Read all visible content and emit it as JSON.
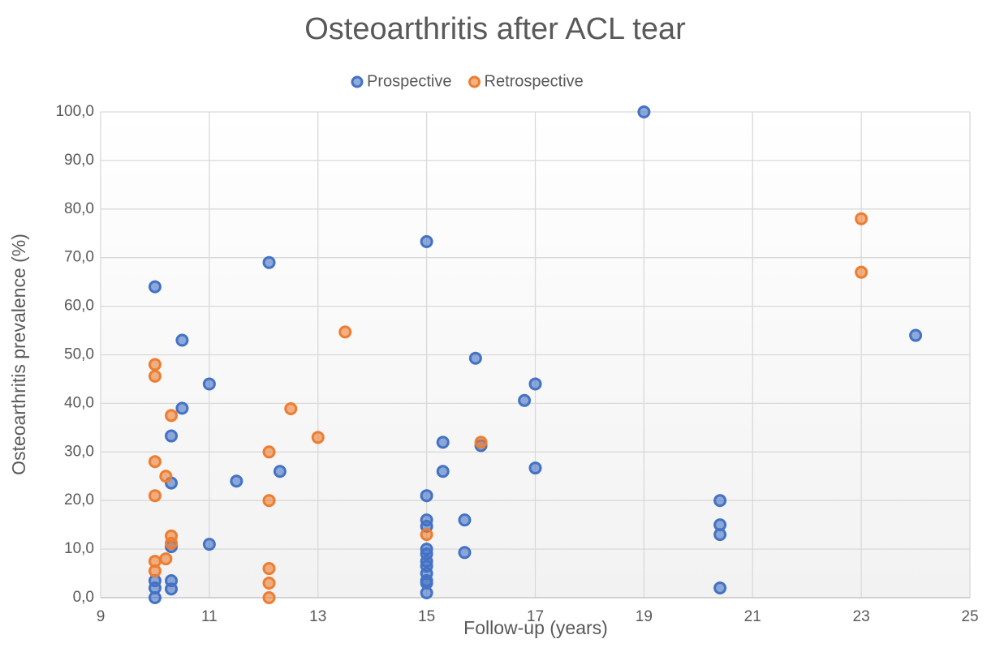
{
  "chart_data": {
    "type": "scatter",
    "title": "Osteoarthritis after ACL tear",
    "x_label": "Follow-up (years)",
    "y_label": "Osteoarthritis prevalence (%)",
    "legend": "top",
    "grid": true,
    "xlim": [
      9,
      25
    ],
    "xticks": [
      9,
      11,
      13,
      15,
      17,
      19,
      21,
      23,
      25
    ],
    "ylim": [
      0,
      100
    ],
    "yticks": [
      {
        "value": 0,
        "label": "0,0"
      },
      {
        "value": 10,
        "label": "10,0"
      },
      {
        "value": 20,
        "label": "20,0"
      },
      {
        "value": 30,
        "label": "30,0"
      },
      {
        "value": 40,
        "label": "40,0"
      },
      {
        "value": 50,
        "label": "50,0"
      },
      {
        "value": 60,
        "label": "60,0"
      },
      {
        "value": 70,
        "label": "70,0"
      },
      {
        "value": 80,
        "label": "80,0"
      },
      {
        "value": 90,
        "label": "90,0"
      },
      {
        "value": 100,
        "label": "100,0"
      }
    ],
    "series": [
      {
        "name": "Prospective",
        "color": "#4472c4",
        "x": [
          10,
          10,
          10,
          10,
          10.5,
          10.5,
          11,
          10.3,
          10.3,
          10.3,
          10.3,
          10.3,
          11,
          11.5,
          12.1,
          12.3,
          15,
          15,
          15,
          15,
          15,
          15,
          15,
          15,
          15,
          15,
          15,
          15,
          15.3,
          15.3,
          15.7,
          15.7,
          15.9,
          16,
          16.8,
          17,
          17,
          19,
          20.4,
          20.4,
          20.4,
          20.4,
          24
        ],
        "y": [
          64,
          0,
          2,
          3.5,
          53,
          39,
          44,
          33.3,
          23.6,
          10.5,
          3.5,
          1.8,
          11,
          24,
          69,
          26,
          73.3,
          21,
          16,
          14.7,
          10,
          9,
          7.5,
          6.5,
          5,
          3.5,
          3,
          1,
          32,
          26,
          16,
          9.3,
          49.3,
          31.3,
          40.6,
          44,
          26.7,
          100,
          20,
          15,
          13,
          2,
          54
        ]
      },
      {
        "name": "Retrospective",
        "color": "#ed7d31",
        "x": [
          10,
          10,
          10,
          10,
          10,
          10,
          10.2,
          10.3,
          10.3,
          10.3,
          10.2,
          12.1,
          12.1,
          12.1,
          12.1,
          12.1,
          12.5,
          13,
          13.5,
          15,
          16,
          23,
          23
        ],
        "y": [
          48,
          45.6,
          28,
          21,
          7.5,
          5.5,
          25,
          37.5,
          12.7,
          11.2,
          8,
          30,
          20,
          6,
          3,
          0,
          38.9,
          33,
          54.7,
          13,
          32,
          78,
          67
        ]
      }
    ]
  }
}
